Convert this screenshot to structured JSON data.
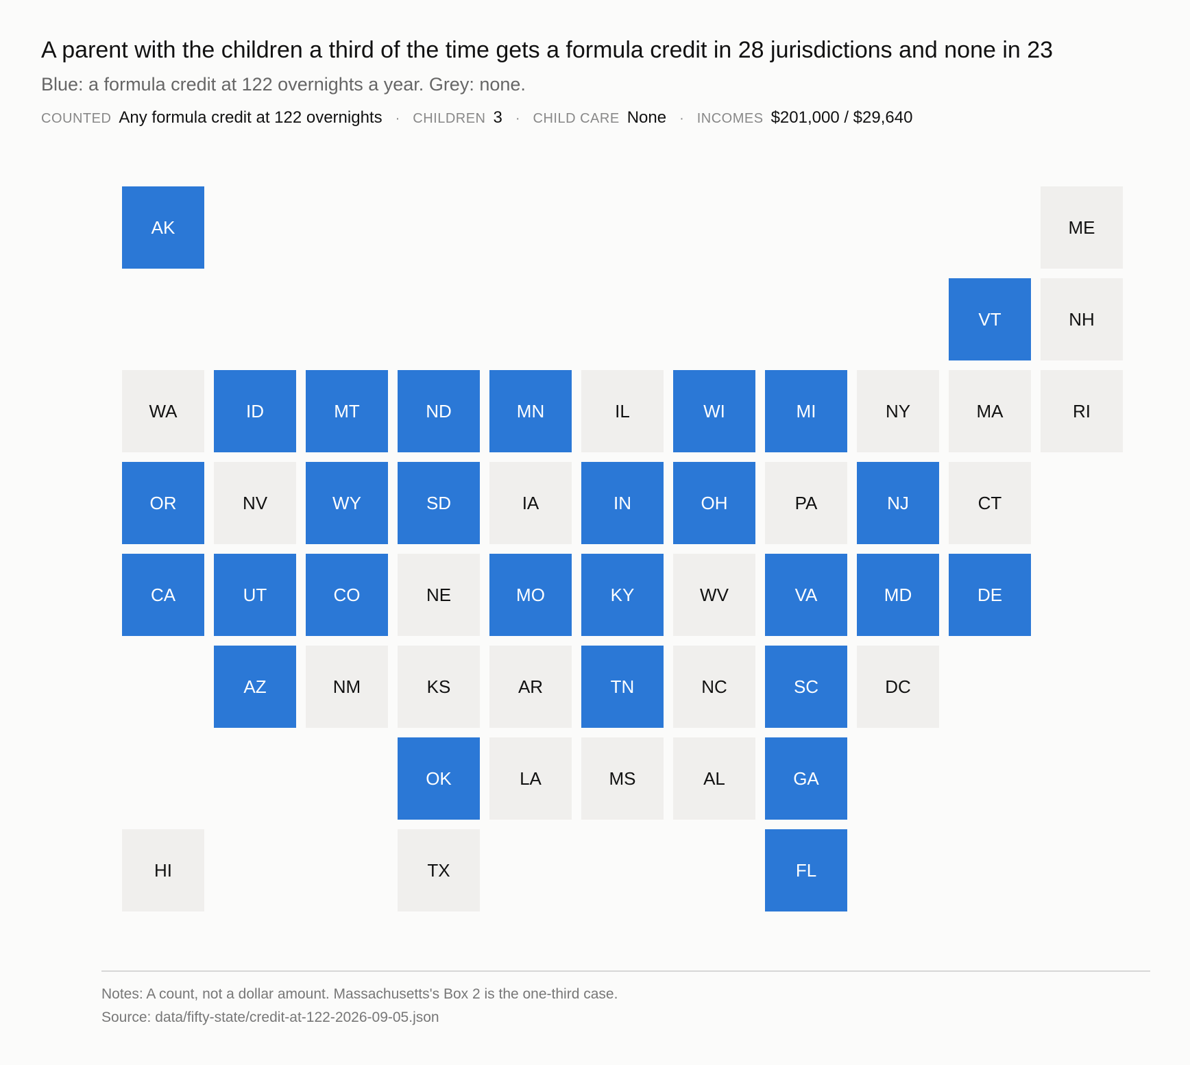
{
  "header": {
    "title": "A parent with the children a third of the time gets a formula credit in 28 jurisdictions and none in 23",
    "subtitle": "Blue: a formula credit at 122 overnights a year. Grey: none."
  },
  "meta": {
    "counted_key": "COUNTED",
    "counted_val": "Any formula credit at 122 overnights",
    "children_key": "CHILDREN",
    "children_val": "3",
    "childcare_key": "CHILD CARE",
    "childcare_val": "None",
    "incomes_key": "INCOMES",
    "incomes_val": "$201,000 / $29,640",
    "separator": "·"
  },
  "colors": {
    "credit": "#2b78d6",
    "none": "#f0efed"
  },
  "map_data": {
    "type": "tile-grid",
    "states": [
      {
        "abbr": "AK",
        "credit": true,
        "col": 0,
        "row": 0
      },
      {
        "abbr": "ME",
        "credit": false,
        "col": 10,
        "row": 0
      },
      {
        "abbr": "VT",
        "credit": true,
        "col": 9,
        "row": 1
      },
      {
        "abbr": "NH",
        "credit": false,
        "col": 10,
        "row": 1
      },
      {
        "abbr": "WA",
        "credit": false,
        "col": 0,
        "row": 2
      },
      {
        "abbr": "ID",
        "credit": true,
        "col": 1,
        "row": 2
      },
      {
        "abbr": "MT",
        "credit": true,
        "col": 2,
        "row": 2
      },
      {
        "abbr": "ND",
        "credit": true,
        "col": 3,
        "row": 2
      },
      {
        "abbr": "MN",
        "credit": true,
        "col": 4,
        "row": 2
      },
      {
        "abbr": "IL",
        "credit": false,
        "col": 5,
        "row": 2
      },
      {
        "abbr": "WI",
        "credit": true,
        "col": 6,
        "row": 2
      },
      {
        "abbr": "MI",
        "credit": true,
        "col": 7,
        "row": 2
      },
      {
        "abbr": "NY",
        "credit": false,
        "col": 8,
        "row": 2
      },
      {
        "abbr": "MA",
        "credit": false,
        "col": 9,
        "row": 2
      },
      {
        "abbr": "RI",
        "credit": false,
        "col": 10,
        "row": 2
      },
      {
        "abbr": "OR",
        "credit": true,
        "col": 0,
        "row": 3
      },
      {
        "abbr": "NV",
        "credit": false,
        "col": 1,
        "row": 3
      },
      {
        "abbr": "WY",
        "credit": true,
        "col": 2,
        "row": 3
      },
      {
        "abbr": "SD",
        "credit": true,
        "col": 3,
        "row": 3
      },
      {
        "abbr": "IA",
        "credit": false,
        "col": 4,
        "row": 3
      },
      {
        "abbr": "IN",
        "credit": true,
        "col": 5,
        "row": 3
      },
      {
        "abbr": "OH",
        "credit": true,
        "col": 6,
        "row": 3
      },
      {
        "abbr": "PA",
        "credit": false,
        "col": 7,
        "row": 3
      },
      {
        "abbr": "NJ",
        "credit": true,
        "col": 8,
        "row": 3
      },
      {
        "abbr": "CT",
        "credit": false,
        "col": 9,
        "row": 3
      },
      {
        "abbr": "CA",
        "credit": true,
        "col": 0,
        "row": 4
      },
      {
        "abbr": "UT",
        "credit": true,
        "col": 1,
        "row": 4
      },
      {
        "abbr": "CO",
        "credit": true,
        "col": 2,
        "row": 4
      },
      {
        "abbr": "NE",
        "credit": false,
        "col": 3,
        "row": 4
      },
      {
        "abbr": "MO",
        "credit": true,
        "col": 4,
        "row": 4
      },
      {
        "abbr": "KY",
        "credit": true,
        "col": 5,
        "row": 4
      },
      {
        "abbr": "WV",
        "credit": false,
        "col": 6,
        "row": 4
      },
      {
        "abbr": "VA",
        "credit": true,
        "col": 7,
        "row": 4
      },
      {
        "abbr": "MD",
        "credit": true,
        "col": 8,
        "row": 4
      },
      {
        "abbr": "DE",
        "credit": true,
        "col": 9,
        "row": 4
      },
      {
        "abbr": "AZ",
        "credit": true,
        "col": 1,
        "row": 5
      },
      {
        "abbr": "NM",
        "credit": false,
        "col": 2,
        "row": 5
      },
      {
        "abbr": "KS",
        "credit": false,
        "col": 3,
        "row": 5
      },
      {
        "abbr": "AR",
        "credit": false,
        "col": 4,
        "row": 5
      },
      {
        "abbr": "TN",
        "credit": true,
        "col": 5,
        "row": 5
      },
      {
        "abbr": "NC",
        "credit": false,
        "col": 6,
        "row": 5
      },
      {
        "abbr": "SC",
        "credit": true,
        "col": 7,
        "row": 5
      },
      {
        "abbr": "DC",
        "credit": false,
        "col": 8,
        "row": 5
      },
      {
        "abbr": "OK",
        "credit": true,
        "col": 3,
        "row": 6
      },
      {
        "abbr": "LA",
        "credit": false,
        "col": 4,
        "row": 6
      },
      {
        "abbr": "MS",
        "credit": false,
        "col": 5,
        "row": 6
      },
      {
        "abbr": "AL",
        "credit": false,
        "col": 6,
        "row": 6
      },
      {
        "abbr": "GA",
        "credit": true,
        "col": 7,
        "row": 6
      },
      {
        "abbr": "HI",
        "credit": false,
        "col": 0,
        "row": 7
      },
      {
        "abbr": "TX",
        "credit": false,
        "col": 3,
        "row": 7
      },
      {
        "abbr": "FL",
        "credit": true,
        "col": 7,
        "row": 7
      }
    ]
  },
  "footer": {
    "notes": "Notes: A count, not a dollar amount. Massachusetts's Box 2 is the one-third case.",
    "source": "Source: data/fifty-state/credit-at-122-2026-09-05.json"
  }
}
